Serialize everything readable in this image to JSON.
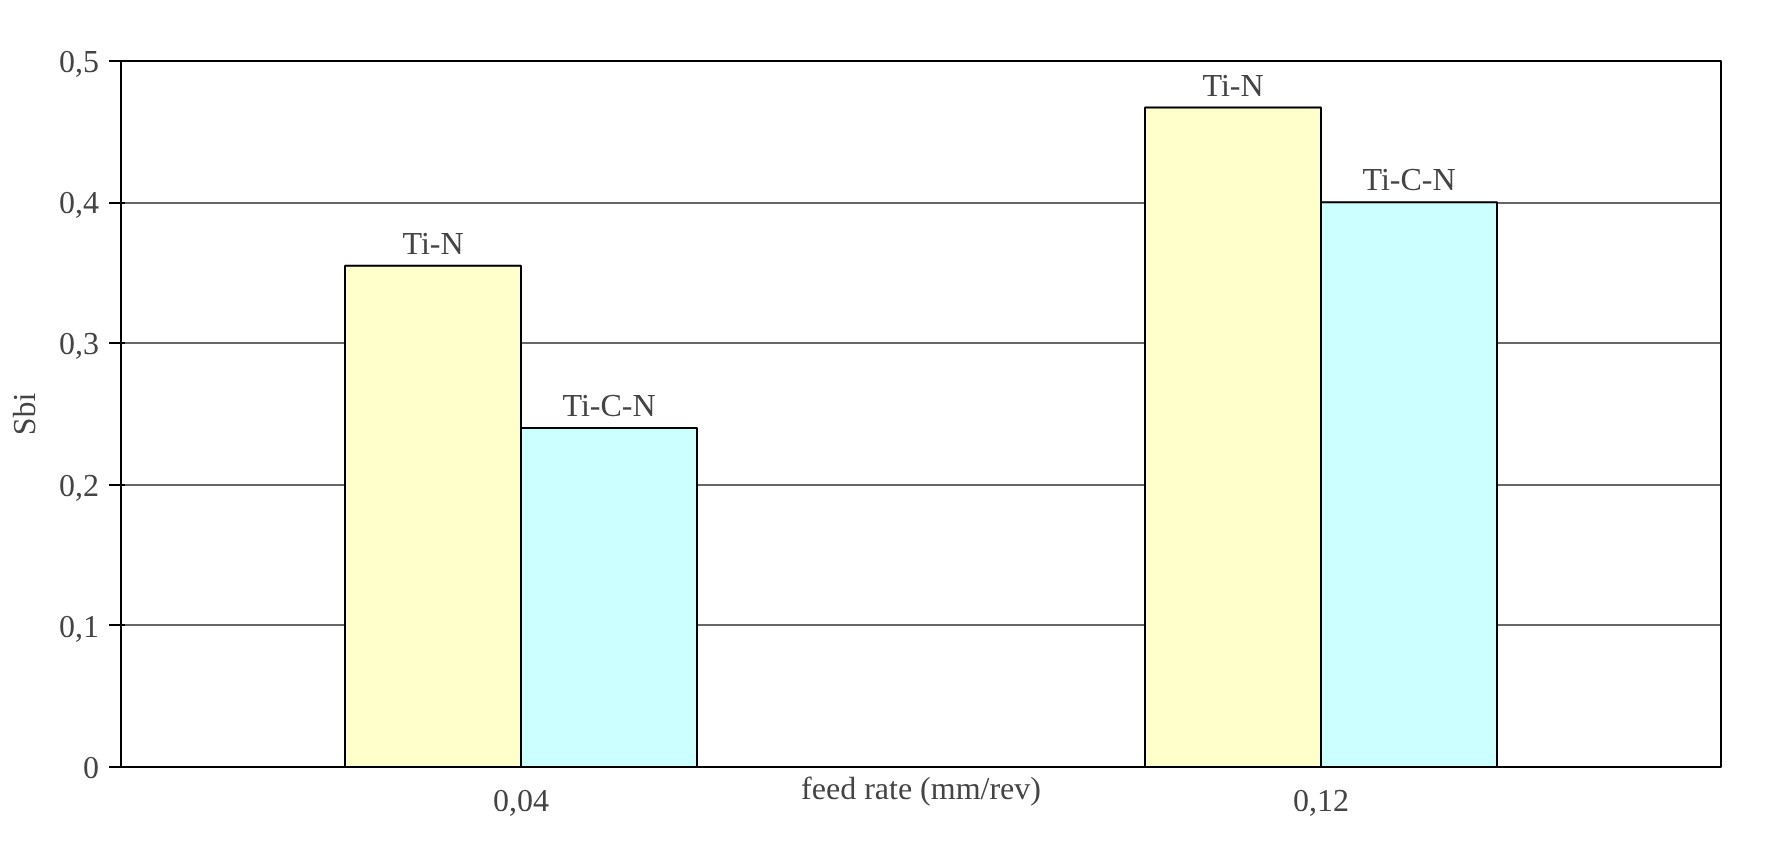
{
  "chart_data": {
    "type": "bar",
    "ylabel": "Sbi",
    "xlabel": "feed rate (mm/rev)",
    "categories": [
      "0,04",
      "0,12"
    ],
    "series": [
      {
        "name": "Ti-N",
        "color": "#ffffcc",
        "values": [
          0.355,
          0.467
        ]
      },
      {
        "name": "Ti-C-N",
        "color": "#ccffff",
        "values": [
          0.24,
          0.4
        ]
      }
    ],
    "ylim": [
      0,
      0.5
    ],
    "yticks": [
      {
        "value": 0,
        "label": "0"
      },
      {
        "value": 0.1,
        "label": "0,1"
      },
      {
        "value": 0.2,
        "label": "0,2"
      },
      {
        "value": 0.3,
        "label": "0,3"
      },
      {
        "value": 0.4,
        "label": "0,4"
      },
      {
        "value": 0.5,
        "label": "0,5"
      }
    ],
    "grid": "y"
  }
}
